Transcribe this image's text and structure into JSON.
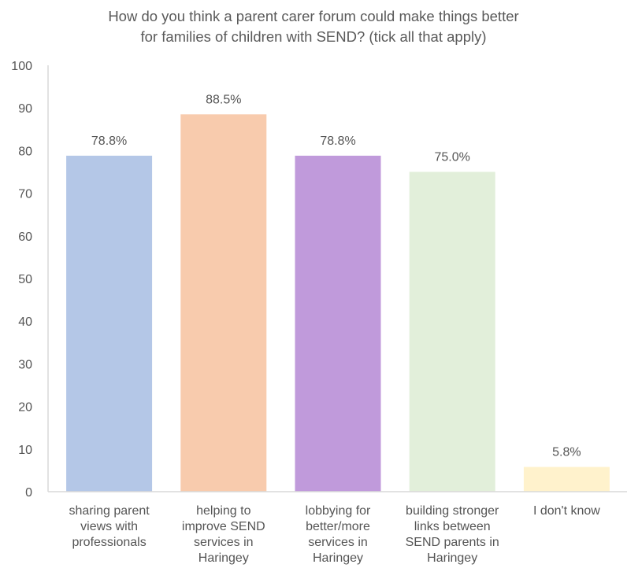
{
  "chart_data": {
    "type": "bar",
    "title_lines": [
      "How do you think a parent carer forum could make things better",
      "for families of children with SEND?  (tick all that apply)"
    ],
    "categories": [
      [
        "sharing parent",
        "views with",
        "professionals"
      ],
      [
        "helping to",
        "improve SEND",
        "services in",
        "Haringey"
      ],
      [
        "lobbying for",
        "better/more",
        "services in",
        "Haringey"
      ],
      [
        "building stronger",
        "links between",
        "SEND parents in",
        "Haringey"
      ],
      [
        "I don't know"
      ]
    ],
    "values": [
      78.8,
      88.5,
      78.8,
      75.0,
      5.8
    ],
    "data_labels": [
      "78.8%",
      "88.5%",
      "78.8%",
      "75.0%",
      "5.8%"
    ],
    "colors": [
      "#b4c7e7",
      "#f8cbad",
      "#c09adb",
      "#e2efda",
      "#fff2cc"
    ],
    "ylim": [
      0,
      100
    ],
    "yticks": [
      "0",
      "10",
      "20",
      "30",
      "40",
      "50",
      "60",
      "70",
      "80",
      "90",
      "100"
    ],
    "axis_color": "#d9d9d9",
    "grid": false,
    "legend": "none"
  }
}
